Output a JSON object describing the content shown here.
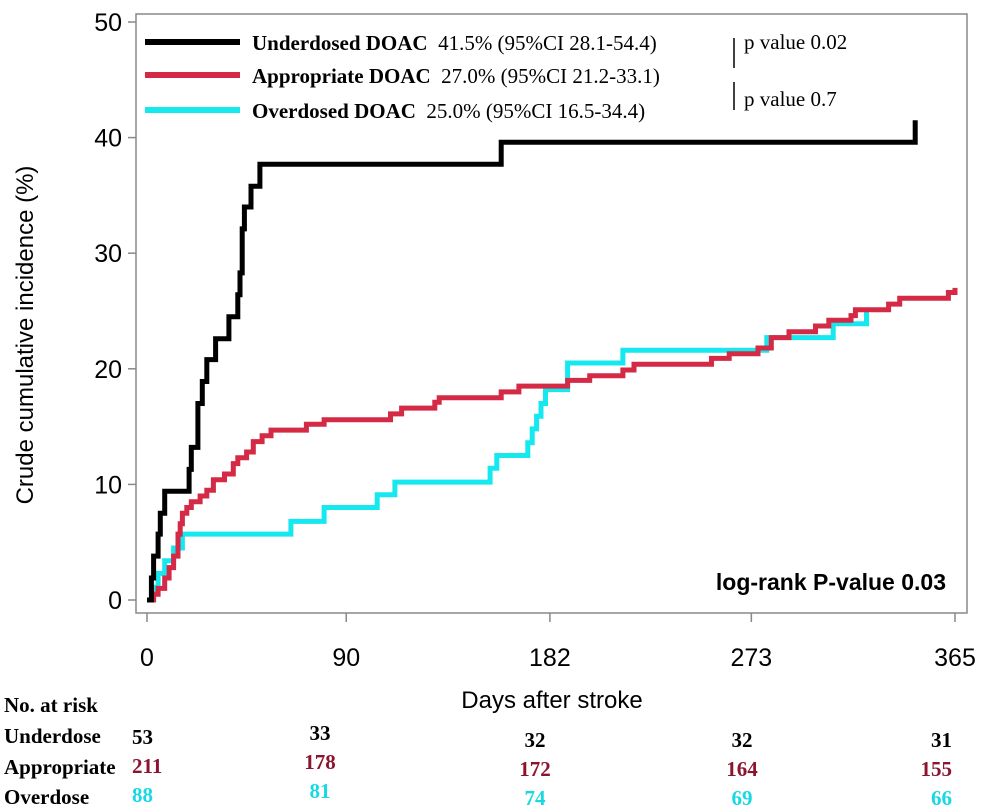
{
  "chart_data": {
    "type": "line",
    "xlabel": "Days after stroke",
    "ylabel": "Crude cumulative incidence (%)",
    "xlim": [
      0,
      365
    ],
    "ylim": [
      0,
      50
    ],
    "x_ticks": [
      "0",
      "90",
      "182",
      "273",
      "365"
    ],
    "y_ticks": [
      "0",
      "10",
      "20",
      "30",
      "40",
      "50"
    ],
    "grid": false,
    "annotation": "log-rank P-value 0.03",
    "legend": {
      "placement": "top-left",
      "entries": [
        {
          "name": "Underdosed DOAC",
          "stat": "41.5% (95%CI 28.1-54.4)",
          "color": "#000000"
        },
        {
          "name": "Appropriate DOAC",
          "stat": "27.0% (95%CI 21.2-33.1)",
          "color": "#d42a45"
        },
        {
          "name": "Overdosed DOAC",
          "stat": "25.0% (95%CI 16.5-34.4)",
          "color": "#16e8f0"
        }
      ],
      "comparisons": [
        "p value 0.02",
        "p value 0.7"
      ]
    },
    "series": [
      {
        "name": "Underdosed DOAC",
        "color": "#000000",
        "points": [
          [
            0,
            0
          ],
          [
            2,
            1.9
          ],
          [
            3,
            3.8
          ],
          [
            5,
            5.7
          ],
          [
            6,
            7.5
          ],
          [
            8,
            9.4
          ],
          [
            19,
            9.4
          ],
          [
            19,
            11.3
          ],
          [
            20,
            13.2
          ],
          [
            23,
            17
          ],
          [
            25,
            18.9
          ],
          [
            27,
            20.8
          ],
          [
            31,
            22.6
          ],
          [
            37,
            24.5
          ],
          [
            41,
            26.4
          ],
          [
            42,
            28.3
          ],
          [
            43,
            32.1
          ],
          [
            44,
            34
          ],
          [
            47,
            35.8
          ],
          [
            51,
            37.7
          ],
          [
            160,
            37.7
          ],
          [
            160,
            39.6
          ],
          [
            347,
            39.6
          ],
          [
            347,
            41.5
          ]
        ]
      },
      {
        "name": "Appropriate DOAC",
        "color": "#d42a45",
        "points": [
          [
            0,
            0
          ],
          [
            3,
            0.5
          ],
          [
            5,
            1
          ],
          [
            8,
            1.9
          ],
          [
            10,
            2.8
          ],
          [
            12,
            3.8
          ],
          [
            14,
            5.7
          ],
          [
            15,
            6.6
          ],
          [
            16,
            7.5
          ],
          [
            18,
            8
          ],
          [
            20,
            8.5
          ],
          [
            24,
            9
          ],
          [
            27,
            9.5
          ],
          [
            30,
            10.4
          ],
          [
            35,
            10.9
          ],
          [
            39,
            11.8
          ],
          [
            41,
            12.3
          ],
          [
            45,
            12.8
          ],
          [
            48,
            13.7
          ],
          [
            52,
            14.2
          ],
          [
            56,
            14.7
          ],
          [
            66,
            14.7
          ],
          [
            72,
            15.2
          ],
          [
            80,
            15.6
          ],
          [
            105,
            15.6
          ],
          [
            110,
            16.1
          ],
          [
            115,
            16.6
          ],
          [
            128,
            16.6
          ],
          [
            130,
            17.1
          ],
          [
            132,
            17.5
          ],
          [
            155,
            17.5
          ],
          [
            160,
            18
          ],
          [
            168,
            18.5
          ],
          [
            185,
            18.5
          ],
          [
            190,
            19
          ],
          [
            200,
            19.4
          ],
          [
            215,
            19.9
          ],
          [
            220,
            20.4
          ],
          [
            240,
            20.4
          ],
          [
            255,
            20.9
          ],
          [
            263,
            21.3
          ],
          [
            276,
            21.8
          ],
          [
            282,
            22.7
          ],
          [
            290,
            23.2
          ],
          [
            302,
            23.7
          ],
          [
            308,
            24.2
          ],
          [
            318,
            24.6
          ],
          [
            320,
            25.1
          ],
          [
            335,
            25.6
          ],
          [
            338,
            25.6
          ],
          [
            340,
            26.1
          ],
          [
            362,
            26.1
          ],
          [
            362,
            26.6
          ],
          [
            365,
            27
          ]
        ]
      },
      {
        "name": "Overdosed DOAC",
        "color": "#16e8f0",
        "points": [
          [
            0,
            0
          ],
          [
            3,
            1.1
          ],
          [
            5,
            2.3
          ],
          [
            8,
            3.4
          ],
          [
            12,
            4.5
          ],
          [
            16,
            5.7
          ],
          [
            65,
            5.7
          ],
          [
            65,
            6.8
          ],
          [
            80,
            6.8
          ],
          [
            80,
            8
          ],
          [
            104,
            8
          ],
          [
            104,
            9.1
          ],
          [
            112,
            9.1
          ],
          [
            112,
            10.2
          ],
          [
            150,
            10.2
          ],
          [
            155,
            11.4
          ],
          [
            158,
            12.5
          ],
          [
            172,
            12.5
          ],
          [
            172,
            13.6
          ],
          [
            174,
            14.8
          ],
          [
            176,
            15.9
          ],
          [
            178,
            17
          ],
          [
            180,
            18.2
          ],
          [
            190,
            18.2
          ],
          [
            190,
            20.5
          ],
          [
            215,
            20.5
          ],
          [
            215,
            21.6
          ],
          [
            280,
            21.6
          ],
          [
            280,
            22.7
          ],
          [
            310,
            22.7
          ],
          [
            310,
            23.9
          ],
          [
            325,
            23.9
          ],
          [
            325,
            25
          ]
        ]
      }
    ],
    "risk_table": {
      "title": "No. at risk",
      "rows": [
        {
          "label": "Underdose",
          "color": "#000000",
          "values": [
            "53",
            "33",
            "32",
            "32",
            "31"
          ]
        },
        {
          "label": "Appropriate",
          "color": "#8b1530",
          "values": [
            "211",
            "178",
            "172",
            "164",
            "155"
          ]
        },
        {
          "label": "Overdose",
          "color": "#18d8e4",
          "values": [
            "88",
            "81",
            "74",
            "69",
            "66"
          ]
        }
      ]
    }
  }
}
